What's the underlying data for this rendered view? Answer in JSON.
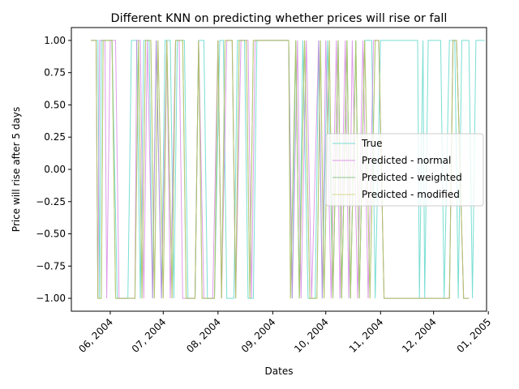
{
  "chart_data": {
    "type": "line",
    "title": "Different KNN on predicting whether prices will rise or fall",
    "xlabel": "Dates",
    "ylabel": "Price will rise after 5 days",
    "x_range": [
      "2004-05-10",
      "2004-12-31"
    ],
    "ylim": [
      -1.1,
      1.1
    ],
    "yticks": [
      -1.0,
      -0.75,
      -0.5,
      -0.25,
      0.0,
      0.25,
      0.5,
      0.75,
      1.0
    ],
    "ytick_labels": [
      "−1.00",
      "−0.75",
      "−0.50",
      "−0.25",
      "0.00",
      "0.25",
      "0.50",
      "0.75",
      "1.00"
    ],
    "xticks": [
      "2004-06-01",
      "2004-07-01",
      "2004-08-01",
      "2004-09-01",
      "2004-10-01",
      "2004-11-01",
      "2004-12-01",
      "2005-01-01"
    ],
    "xtick_labels": [
      "06, 2004",
      "07, 2004",
      "08, 2004",
      "09, 2004",
      "10, 2004",
      "11, 2004",
      "12, 2004",
      "01, 2005"
    ],
    "legend_position": "center-right",
    "grid": false,
    "series": [
      {
        "name": "True",
        "color": "#40d0c0",
        "points": [
          [
            "2004-05-21",
            1
          ],
          [
            "2004-05-25",
            1
          ],
          [
            "2004-05-26",
            -1
          ],
          [
            "2004-05-27",
            1
          ],
          [
            "2004-06-02",
            1
          ],
          [
            "2004-06-05",
            -1
          ],
          [
            "2004-06-11",
            -1
          ],
          [
            "2004-06-13",
            1
          ],
          [
            "2004-06-16",
            1
          ],
          [
            "2004-06-18",
            -1
          ],
          [
            "2004-06-20",
            1
          ],
          [
            "2004-06-23",
            1
          ],
          [
            "2004-06-25",
            -1
          ],
          [
            "2004-06-27",
            1
          ],
          [
            "2004-06-30",
            -1
          ],
          [
            "2004-07-02",
            1
          ],
          [
            "2004-07-05",
            1
          ],
          [
            "2004-07-07",
            -1
          ],
          [
            "2004-07-09",
            1
          ],
          [
            "2004-07-13",
            1
          ],
          [
            "2004-07-15",
            -1
          ],
          [
            "2004-07-19",
            -1
          ],
          [
            "2004-07-21",
            1
          ],
          [
            "2004-07-24",
            1
          ],
          [
            "2004-07-26",
            -1
          ],
          [
            "2004-07-30",
            -1
          ],
          [
            "2004-08-02",
            1
          ],
          [
            "2004-08-04",
            1
          ],
          [
            "2004-08-06",
            -1
          ],
          [
            "2004-08-10",
            -1
          ],
          [
            "2004-08-12",
            1
          ],
          [
            "2004-08-16",
            1
          ],
          [
            "2004-08-18",
            -1
          ],
          [
            "2004-08-21",
            -1
          ],
          [
            "2004-08-23",
            1
          ],
          [
            "2004-09-10",
            1
          ],
          [
            "2004-09-12",
            -1
          ],
          [
            "2004-09-14",
            1
          ],
          [
            "2004-09-16",
            -1
          ],
          [
            "2004-09-18",
            1
          ],
          [
            "2004-09-21",
            -1
          ],
          [
            "2004-09-25",
            -1
          ],
          [
            "2004-09-27",
            1
          ],
          [
            "2004-09-29",
            -1
          ],
          [
            "2004-10-02",
            1
          ],
          [
            "2004-10-05",
            -1
          ],
          [
            "2004-10-08",
            1
          ],
          [
            "2004-10-10",
            -1
          ],
          [
            "2004-10-13",
            1
          ],
          [
            "2004-10-15",
            -1
          ],
          [
            "2004-10-18",
            1
          ],
          [
            "2004-10-20",
            -1
          ],
          [
            "2004-10-23",
            1
          ],
          [
            "2004-10-27",
            1
          ],
          [
            "2004-10-29",
            -1
          ],
          [
            "2004-11-01",
            1
          ],
          [
            "2004-11-22",
            1
          ],
          [
            "2004-11-23",
            -1
          ],
          [
            "2004-11-25",
            1
          ],
          [
            "2004-11-26",
            -1
          ],
          [
            "2004-11-28",
            1
          ],
          [
            "2004-12-05",
            1
          ],
          [
            "2004-12-07",
            -1
          ],
          [
            "2004-12-10",
            1
          ],
          [
            "2004-12-13",
            1
          ],
          [
            "2004-12-15",
            -1
          ],
          [
            "2004-12-17",
            1
          ],
          [
            "2004-12-21",
            1
          ],
          [
            "2004-12-23",
            -1
          ],
          [
            "2004-12-25",
            1
          ],
          [
            "2004-12-30",
            1
          ]
        ]
      },
      {
        "name": "Predicted - normal",
        "color": "#d070e0",
        "points": [
          [
            "2004-05-21",
            1
          ],
          [
            "2004-05-24",
            1
          ],
          [
            "2004-05-25",
            -1
          ],
          [
            "2004-05-26",
            1
          ],
          [
            "2004-05-29",
            1
          ],
          [
            "2004-05-30",
            -1
          ],
          [
            "2004-06-01",
            1
          ],
          [
            "2004-06-04",
            1
          ],
          [
            "2004-06-06",
            -1
          ],
          [
            "2004-06-15",
            -1
          ],
          [
            "2004-06-16",
            1
          ],
          [
            "2004-06-18",
            1
          ],
          [
            "2004-06-20",
            -1
          ],
          [
            "2004-06-22",
            1
          ],
          [
            "2004-06-25",
            -1
          ],
          [
            "2004-06-27",
            1
          ],
          [
            "2004-06-30",
            -1
          ],
          [
            "2004-07-03",
            1
          ],
          [
            "2004-07-05",
            -1
          ],
          [
            "2004-07-08",
            1
          ],
          [
            "2004-07-10",
            1
          ],
          [
            "2004-07-12",
            -1
          ],
          [
            "2004-07-19",
            -1
          ],
          [
            "2004-07-21",
            1
          ],
          [
            "2004-07-24",
            -1
          ],
          [
            "2004-07-29",
            -1
          ],
          [
            "2004-08-01",
            1
          ],
          [
            "2004-08-03",
            -1
          ],
          [
            "2004-08-06",
            1
          ],
          [
            "2004-08-09",
            1
          ],
          [
            "2004-08-11",
            -1
          ],
          [
            "2004-08-14",
            1
          ],
          [
            "2004-08-18",
            1
          ],
          [
            "2004-08-20",
            -1
          ],
          [
            "2004-08-22",
            1
          ],
          [
            "2004-09-10",
            1
          ],
          [
            "2004-09-12",
            -1
          ],
          [
            "2004-09-15",
            1
          ],
          [
            "2004-09-17",
            -1
          ],
          [
            "2004-09-20",
            1
          ],
          [
            "2004-09-23",
            -1
          ],
          [
            "2004-09-27",
            1
          ],
          [
            "2004-09-29",
            -1
          ],
          [
            "2004-10-01",
            1
          ],
          [
            "2004-10-04",
            -1
          ],
          [
            "2004-10-07",
            1
          ],
          [
            "2004-10-09",
            -1
          ],
          [
            "2004-10-12",
            1
          ],
          [
            "2004-10-14",
            -1
          ],
          [
            "2004-10-16",
            1
          ],
          [
            "2004-10-19",
            -1
          ],
          [
            "2004-10-22",
            1
          ],
          [
            "2004-10-25",
            -1
          ],
          [
            "2004-10-28",
            1
          ],
          [
            "2004-10-31",
            1
          ],
          [
            "2004-11-03",
            -1
          ],
          [
            "2004-12-10",
            -1
          ],
          [
            "2004-12-12",
            1
          ],
          [
            "2004-12-14",
            1
          ],
          [
            "2004-12-18",
            -1
          ],
          [
            "2004-12-21",
            -1
          ]
        ]
      },
      {
        "name": "Predicted - weighted",
        "color": "#60b060",
        "points": [
          [
            "2004-05-21",
            1
          ],
          [
            "2004-05-24",
            1
          ],
          [
            "2004-05-25",
            -1
          ],
          [
            "2004-05-27",
            -1
          ],
          [
            "2004-05-28",
            1
          ],
          [
            "2004-06-02",
            1
          ],
          [
            "2004-06-04",
            -1
          ],
          [
            "2004-06-15",
            -1
          ],
          [
            "2004-06-17",
            1
          ],
          [
            "2004-06-19",
            -1
          ],
          [
            "2004-06-21",
            1
          ],
          [
            "2004-06-24",
            1
          ],
          [
            "2004-06-26",
            -1
          ],
          [
            "2004-06-28",
            1
          ],
          [
            "2004-07-01",
            -1
          ],
          [
            "2004-07-03",
            1
          ],
          [
            "2004-07-06",
            -1
          ],
          [
            "2004-07-08",
            1
          ],
          [
            "2004-07-12",
            1
          ],
          [
            "2004-07-14",
            -1
          ],
          [
            "2004-07-19",
            -1
          ],
          [
            "2004-07-21",
            1
          ],
          [
            "2004-07-23",
            -1
          ],
          [
            "2004-07-30",
            -1
          ],
          [
            "2004-08-01",
            1
          ],
          [
            "2004-08-03",
            -1
          ],
          [
            "2004-08-05",
            1
          ],
          [
            "2004-08-09",
            1
          ],
          [
            "2004-08-11",
            -1
          ],
          [
            "2004-08-13",
            1
          ],
          [
            "2004-08-17",
            1
          ],
          [
            "2004-08-19",
            -1
          ],
          [
            "2004-08-21",
            1
          ],
          [
            "2004-09-10",
            1
          ],
          [
            "2004-09-11",
            -1
          ],
          [
            "2004-09-14",
            1
          ],
          [
            "2004-09-16",
            -1
          ],
          [
            "2004-09-19",
            1
          ],
          [
            "2004-09-22",
            -1
          ],
          [
            "2004-09-26",
            -1
          ],
          [
            "2004-09-28",
            1
          ],
          [
            "2004-09-30",
            -1
          ],
          [
            "2004-10-03",
            1
          ],
          [
            "2004-10-05",
            -1
          ],
          [
            "2004-10-08",
            1
          ],
          [
            "2004-10-10",
            -1
          ],
          [
            "2004-10-13",
            1
          ],
          [
            "2004-10-15",
            -1
          ],
          [
            "2004-10-18",
            1
          ],
          [
            "2004-10-20",
            -1
          ],
          [
            "2004-10-23",
            1
          ],
          [
            "2004-10-26",
            -1
          ],
          [
            "2004-10-29",
            1
          ],
          [
            "2004-10-31",
            1
          ],
          [
            "2004-11-03",
            -1
          ],
          [
            "2004-12-10",
            -1
          ],
          [
            "2004-12-12",
            1
          ],
          [
            "2004-12-14",
            1
          ],
          [
            "2004-12-18",
            -1
          ],
          [
            "2004-12-21",
            -1
          ]
        ]
      },
      {
        "name": "Predicted - modified",
        "color": "#c8c860",
        "points": [
          [
            "2004-05-21",
            1
          ],
          [
            "2004-05-24",
            1
          ],
          [
            "2004-05-25",
            -1
          ],
          [
            "2004-05-27",
            -1
          ],
          [
            "2004-05-28",
            1
          ],
          [
            "2004-06-02",
            1
          ],
          [
            "2004-06-04",
            -1
          ],
          [
            "2004-06-15",
            -1
          ],
          [
            "2004-06-17",
            1
          ],
          [
            "2004-06-19",
            -1
          ],
          [
            "2004-06-21",
            1
          ],
          [
            "2004-06-24",
            1
          ],
          [
            "2004-06-26",
            -1
          ],
          [
            "2004-06-28",
            1
          ],
          [
            "2004-07-01",
            -1
          ],
          [
            "2004-07-03",
            1
          ],
          [
            "2004-07-06",
            -1
          ],
          [
            "2004-07-08",
            1
          ],
          [
            "2004-07-12",
            1
          ],
          [
            "2004-07-14",
            -1
          ],
          [
            "2004-07-19",
            -1
          ],
          [
            "2004-07-21",
            1
          ],
          [
            "2004-07-23",
            -1
          ],
          [
            "2004-07-30",
            -1
          ],
          [
            "2004-08-01",
            1
          ],
          [
            "2004-08-03",
            -1
          ],
          [
            "2004-08-05",
            1
          ],
          [
            "2004-08-09",
            1
          ],
          [
            "2004-08-11",
            -1
          ],
          [
            "2004-08-13",
            1
          ],
          [
            "2004-08-17",
            1
          ],
          [
            "2004-08-19",
            -1
          ],
          [
            "2004-08-21",
            1
          ],
          [
            "2004-09-10",
            1
          ],
          [
            "2004-09-11",
            -1
          ],
          [
            "2004-09-14",
            1
          ],
          [
            "2004-09-16",
            -1
          ],
          [
            "2004-09-19",
            1
          ],
          [
            "2004-09-22",
            -1
          ],
          [
            "2004-09-26",
            -1
          ],
          [
            "2004-09-28",
            1
          ],
          [
            "2004-09-30",
            -1
          ],
          [
            "2004-10-03",
            1
          ],
          [
            "2004-10-05",
            -1
          ],
          [
            "2004-10-08",
            1
          ],
          [
            "2004-10-10",
            -1
          ],
          [
            "2004-10-13",
            1
          ],
          [
            "2004-10-15",
            -1
          ],
          [
            "2004-10-18",
            1
          ],
          [
            "2004-10-20",
            -1
          ],
          [
            "2004-10-23",
            1
          ],
          [
            "2004-10-26",
            -1
          ],
          [
            "2004-10-29",
            1
          ],
          [
            "2004-10-31",
            1
          ],
          [
            "2004-11-03",
            -1
          ],
          [
            "2004-12-10",
            -1
          ],
          [
            "2004-12-12",
            1
          ],
          [
            "2004-12-14",
            1
          ],
          [
            "2004-12-18",
            -1
          ],
          [
            "2004-12-21",
            -1
          ]
        ]
      }
    ]
  }
}
